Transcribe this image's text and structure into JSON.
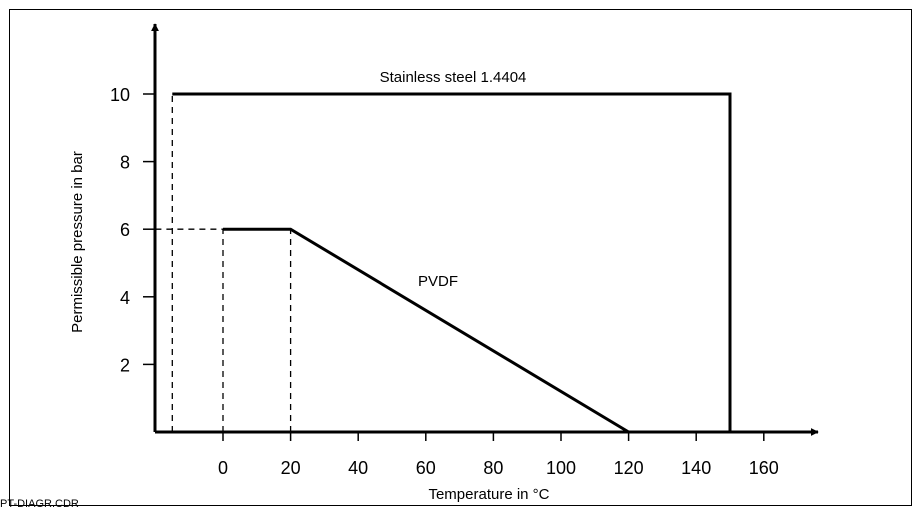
{
  "chart_data": {
    "type": "line",
    "title": "",
    "xlabel": "Temperature in °C",
    "ylabel": "Permissible pressure in bar",
    "xlim": [
      -20,
      170
    ],
    "ylim": [
      0,
      11
    ],
    "x_ticks": [
      0,
      20,
      40,
      60,
      80,
      100,
      120,
      140,
      160
    ],
    "y_ticks": [
      2,
      4,
      6,
      8,
      10
    ],
    "grid": false,
    "series": [
      {
        "name": "Stainless steel 1.4404",
        "x": [
          -15,
          150,
          150
        ],
        "y": [
          10,
          10,
          0
        ],
        "style": "solid"
      },
      {
        "name": "PVDF",
        "x": [
          0,
          20,
          120
        ],
        "y": [
          6,
          6,
          0
        ],
        "style": "solid"
      }
    ],
    "reference_lines": [
      {
        "x": [
          -15,
          -15
        ],
        "y": [
          0,
          10
        ],
        "style": "dashed"
      },
      {
        "x": [
          -20,
          0
        ],
        "y": [
          6,
          6
        ],
        "style": "dashed"
      },
      {
        "x": [
          0,
          0
        ],
        "y": [
          0,
          6
        ],
        "style": "dashed"
      },
      {
        "x": [
          20,
          20
        ],
        "y": [
          0,
          6
        ],
        "style": "dashed"
      }
    ],
    "annotations": [
      {
        "text": "Stainless steel 1.4404",
        "x": 77,
        "y": 10.5
      },
      {
        "text": "PVDF",
        "x": 75,
        "y": 4.4
      }
    ]
  },
  "footer_label": "PT-DIAGR.CDR",
  "colors": {
    "line": "#000000",
    "background": "#ffffff"
  }
}
